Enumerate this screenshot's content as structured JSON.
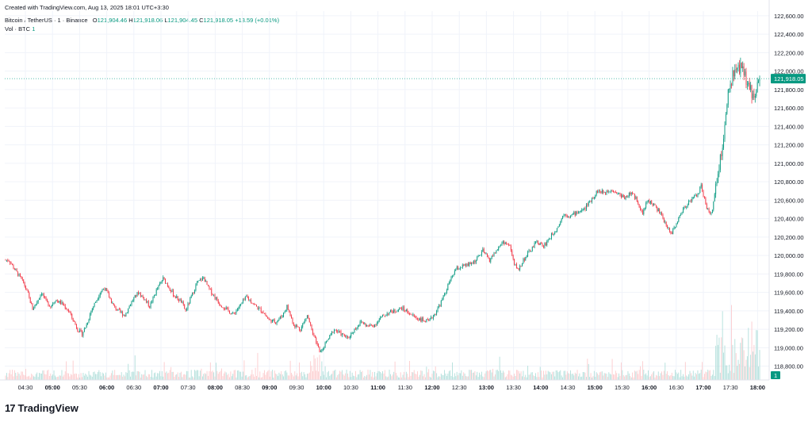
{
  "header": {
    "created": "Created with TradingView.com, Aug 13, 2025 18:01 UTC+3:30",
    "symbol": "Bitcoin / TetherUS · 1 · Binance",
    "o_label": "O",
    "o_value": "121,904.46",
    "h_label": "H",
    "h_value": "121,918.06",
    "l_label": "L",
    "l_value": "121,904.45",
    "c_label": "C",
    "c_value": "121,918.05",
    "change": "+13.59 (+0.01%)",
    "vol_label": "Vol · BTC",
    "vol_value": "1"
  },
  "brand": {
    "mark": "17",
    "name": "TradingView"
  },
  "colors": {
    "up": "#089981",
    "down": "#f23645",
    "grid": "#f0f3fa",
    "text": "#131722",
    "vol_up": "#b2dfdb",
    "vol_down": "#fccbcd",
    "price_line": "#22ab94"
  },
  "chart_data": {
    "type": "candlestick",
    "y_ticks": [
      "122,600.00",
      "122,400.00",
      "122,200.00",
      "122,000.00",
      "121,800.00",
      "121,600.00",
      "121,400.00",
      "121,200.00",
      "121,000.00",
      "120,800.00",
      "120,600.00",
      "120,400.00",
      "120,200.00",
      "120,000.00",
      "119,800.00",
      "119,600.00",
      "119,400.00",
      "119,200.00",
      "119,000.00",
      "118,800.00"
    ],
    "y_tick_values": [
      122600,
      122400,
      122200,
      122000,
      121800,
      121600,
      121400,
      121200,
      121000,
      120800,
      120600,
      120400,
      120200,
      120000,
      119800,
      119600,
      119400,
      119200,
      119000,
      118800
    ],
    "ylim": [
      118650,
      122650
    ],
    "x_ticks": [
      "04:30",
      "05:00",
      "05:30",
      "06:00",
      "06:30",
      "07:00",
      "07:30",
      "08:00",
      "08:30",
      "09:00",
      "09:30",
      "10:00",
      "10:30",
      "11:00",
      "11:30",
      "12:00",
      "12:30",
      "13:00",
      "13:30",
      "14:00",
      "14:30",
      "15:00",
      "15:30",
      "16:00",
      "16:30",
      "17:00",
      "17:30",
      "18:00"
    ],
    "x_tick_bold": [
      false,
      true,
      false,
      true,
      false,
      true,
      false,
      true,
      false,
      true,
      false,
      true,
      false,
      true,
      false,
      true,
      false,
      true,
      false,
      true,
      false,
      true,
      false,
      true,
      false,
      true,
      false,
      true
    ],
    "price_path": [
      [
        0,
        119950
      ],
      [
        3,
        119950
      ],
      [
        8,
        119850
      ],
      [
        12,
        119780
      ],
      [
        16,
        119700
      ],
      [
        20,
        119580
      ],
      [
        24,
        119420
      ],
      [
        28,
        119500
      ],
      [
        32,
        119600
      ],
      [
        36,
        119500
      ],
      [
        40,
        119450
      ],
      [
        44,
        119520
      ],
      [
        50,
        119480
      ],
      [
        56,
        119400
      ],
      [
        60,
        119300
      ],
      [
        64,
        119200
      ],
      [
        68,
        119150
      ],
      [
        72,
        119250
      ],
      [
        76,
        119400
      ],
      [
        80,
        119500
      ],
      [
        84,
        119600
      ],
      [
        88,
        119650
      ],
      [
        92,
        119550
      ],
      [
        96,
        119450
      ],
      [
        100,
        119400
      ],
      [
        106,
        119350
      ],
      [
        112,
        119500
      ],
      [
        118,
        119600
      ],
      [
        124,
        119520
      ],
      [
        128,
        119450
      ],
      [
        134,
        119620
      ],
      [
        140,
        119750
      ],
      [
        144,
        119680
      ],
      [
        150,
        119560
      ],
      [
        156,
        119500
      ],
      [
        160,
        119400
      ],
      [
        164,
        119520
      ],
      [
        170,
        119700
      ],
      [
        176,
        119760
      ],
      [
        180,
        119650
      ],
      [
        186,
        119550
      ],
      [
        190,
        119480
      ],
      [
        196,
        119420
      ],
      [
        202,
        119360
      ],
      [
        208,
        119450
      ],
      [
        214,
        119550
      ],
      [
        220,
        119480
      ],
      [
        224,
        119430
      ],
      [
        228,
        119400
      ],
      [
        234,
        119300
      ],
      [
        240,
        119280
      ],
      [
        246,
        119350
      ],
      [
        250,
        119450
      ],
      [
        256,
        119250
      ],
      [
        262,
        119200
      ],
      [
        268,
        119350
      ],
      [
        272,
        119200
      ],
      [
        276,
        119050
      ],
      [
        280,
        118950
      ],
      [
        286,
        119080
      ],
      [
        292,
        119200
      ],
      [
        298,
        119150
      ],
      [
        304,
        119100
      ],
      [
        310,
        119200
      ],
      [
        316,
        119280
      ],
      [
        322,
        119230
      ],
      [
        328,
        119250
      ],
      [
        334,
        119330
      ],
      [
        340,
        119380
      ],
      [
        346,
        119400
      ],
      [
        352,
        119430
      ],
      [
        358,
        119380
      ],
      [
        364,
        119330
      ],
      [
        370,
        119300
      ],
      [
        376,
        119280
      ],
      [
        382,
        119380
      ],
      [
        388,
        119520
      ],
      [
        394,
        119700
      ],
      [
        400,
        119850
      ],
      [
        406,
        119880
      ],
      [
        412,
        119900
      ],
      [
        418,
        119950
      ],
      [
        424,
        120050
      ],
      [
        430,
        119950
      ],
      [
        436,
        120050
      ],
      [
        442,
        120150
      ],
      [
        448,
        120100
      ],
      [
        452,
        119900
      ],
      [
        456,
        119850
      ],
      [
        460,
        119950
      ],
      [
        466,
        120050
      ],
      [
        472,
        120150
      ],
      [
        478,
        120100
      ],
      [
        484,
        120200
      ],
      [
        490,
        120300
      ],
      [
        496,
        120450
      ],
      [
        502,
        120430
      ],
      [
        508,
        120470
      ],
      [
        514,
        120500
      ],
      [
        520,
        120600
      ],
      [
        526,
        120700
      ],
      [
        532,
        120680
      ],
      [
        538,
        120720
      ],
      [
        544,
        120670
      ],
      [
        550,
        120630
      ],
      [
        556,
        120680
      ],
      [
        562,
        120580
      ],
      [
        566,
        120440
      ],
      [
        570,
        120600
      ],
      [
        576,
        120550
      ],
      [
        582,
        120450
      ],
      [
        588,
        120300
      ],
      [
        592,
        120250
      ],
      [
        596,
        120350
      ],
      [
        602,
        120500
      ],
      [
        608,
        120600
      ],
      [
        614,
        120650
      ],
      [
        618,
        120750
      ],
      [
        622,
        120560
      ],
      [
        625,
        120450
      ],
      [
        628,
        120500
      ],
      [
        632,
        120800
      ],
      [
        638,
        121300
      ],
      [
        642,
        121750
      ],
      [
        646,
        121950
      ],
      [
        650,
        122000
      ],
      [
        654,
        122050
      ],
      [
        658,
        121900
      ],
      [
        661,
        121850
      ],
      [
        664,
        121700
      ],
      [
        667,
        121800
      ],
      [
        670,
        121918
      ]
    ],
    "last_price": "121,918.05",
    "last_price_value": 121918.05,
    "vol_last": "1"
  }
}
